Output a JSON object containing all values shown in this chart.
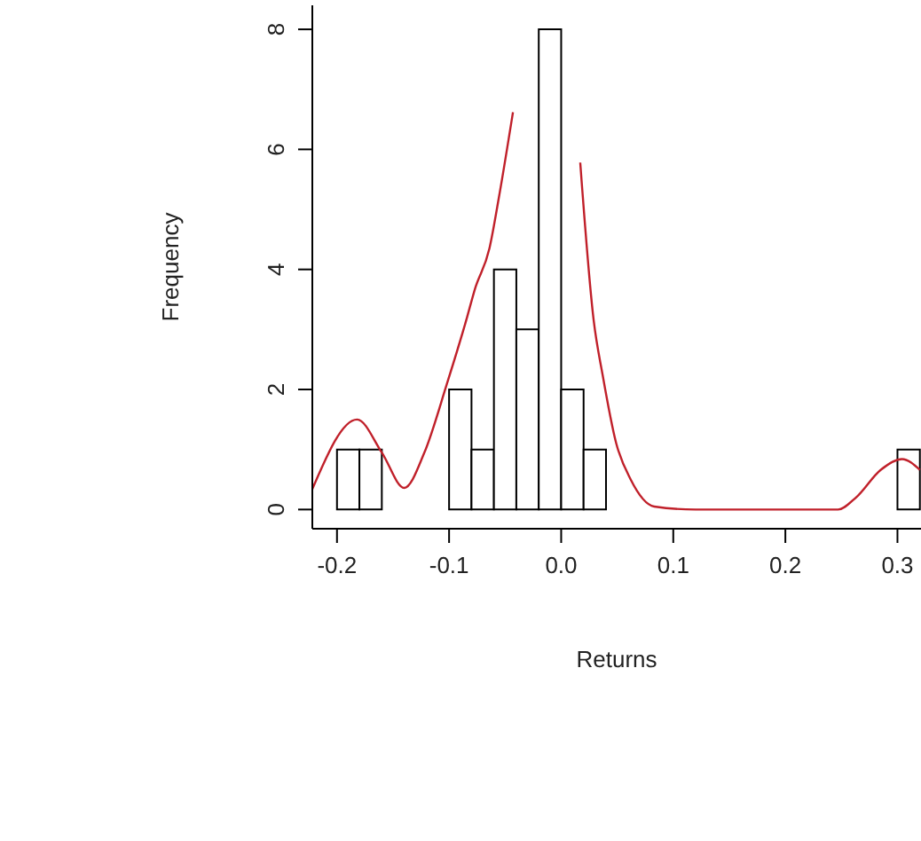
{
  "chart_data": {
    "type": "histogram",
    "xlabel": "Returns",
    "ylabel": "Frequency",
    "bins": [
      -0.2,
      -0.18,
      -0.16,
      -0.14,
      -0.12,
      -0.1,
      -0.08,
      -0.06,
      -0.04,
      -0.02,
      0,
      0.02,
      0.04,
      0.06,
      0.08,
      0.1,
      0.12,
      0.14,
      0.16,
      0.18,
      0.2,
      0.22,
      0.24,
      0.26,
      0.28,
      0.3,
      0.32
    ],
    "values": [
      1,
      1,
      0,
      0,
      0,
      2,
      1,
      4,
      3,
      8,
      2,
      1,
      0,
      0,
      0,
      0,
      0,
      0,
      0,
      0,
      0,
      0,
      0,
      0,
      0,
      1
    ],
    "color": "#000000",
    "series": [
      {
        "type": "line",
        "color": "#c0202a",
        "x": [
          -0.222,
          -0.182,
          -0.16,
          -0.14,
          -0.122,
          -0.102,
          -0.084,
          -0.077,
          -0.064,
          -0.055,
          -0.043,
          -0.03,
          0.003,
          0.017,
          0.029,
          0.037,
          0.049,
          0.062,
          0.083,
          0.12,
          0.247,
          0.263,
          0.285,
          0.304,
          0.32
        ],
        "values": [
          0.34,
          1.5,
          0.95,
          0.36,
          0.95,
          2.09,
          3.2,
          3.67,
          4.35,
          5.26,
          6.62,
          null,
          null,
          5.78,
          3.15,
          2.24,
          1.11,
          0.5,
          0.05,
          0,
          0,
          0.2,
          0.66,
          0.84,
          0.66
        ]
      }
    ],
    "xlim": [
      -0.222,
      0.321
    ],
    "ylim": [
      -0.32,
      8.4
    ],
    "xticks": [
      {
        "value": -0.2,
        "label": "-0.2"
      },
      {
        "value": -0.1,
        "label": "-0.1"
      },
      {
        "value": 0,
        "label": "0.0"
      },
      {
        "value": 0.1,
        "label": "0.1"
      },
      {
        "value": 0.2,
        "label": "0.2"
      },
      {
        "value": 0.3,
        "label": "0.3"
      }
    ],
    "yticks": [
      0,
      2,
      4,
      6,
      8
    ]
  }
}
